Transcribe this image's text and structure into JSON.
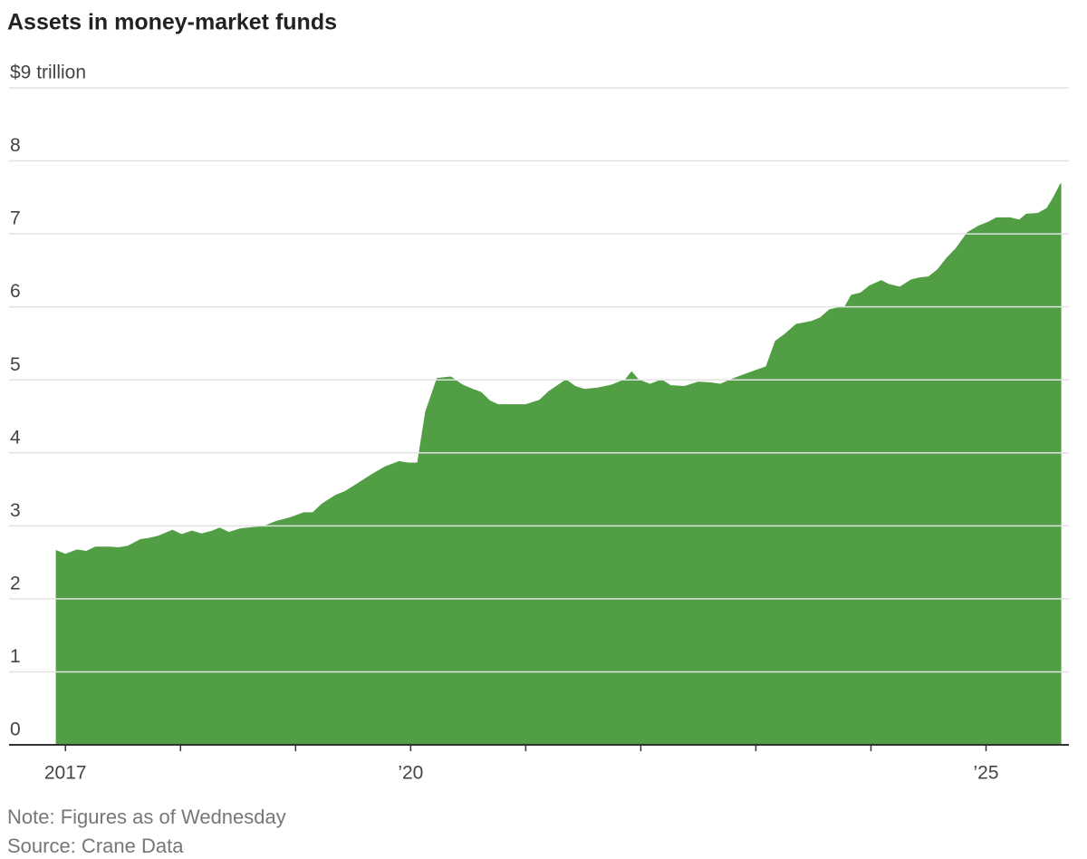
{
  "chart_data": {
    "type": "area",
    "title": "Assets in money-market funds",
    "notes": [
      "Note: Figures as of Wednesday",
      "Source: Crane Data"
    ],
    "color": "#529e44",
    "grid": true,
    "x": [
      2016.92,
      2017.0,
      2017.1,
      2017.18,
      2017.26,
      2017.38,
      2017.46,
      2017.54,
      2017.65,
      2017.73,
      2017.81,
      2017.93,
      2018.01,
      2018.1,
      2018.18,
      2018.26,
      2018.34,
      2018.42,
      2018.52,
      2018.64,
      2018.72,
      2018.83,
      2018.95,
      2019.07,
      2019.15,
      2019.23,
      2019.35,
      2019.43,
      2019.54,
      2019.66,
      2019.78,
      2019.9,
      2019.98,
      2020.06,
      2020.13,
      2020.23,
      2020.35,
      2020.45,
      2020.54,
      2020.61,
      2020.69,
      2020.76,
      2020.88,
      2021.0,
      2021.12,
      2021.2,
      2021.35,
      2021.43,
      2021.51,
      2021.63,
      2021.75,
      2021.87,
      2021.92,
      2021.98,
      2022.08,
      2022.18,
      2022.26,
      2022.38,
      2022.5,
      2022.61,
      2022.69,
      2022.81,
      2022.93,
      2023.09,
      2023.17,
      2023.24,
      2023.35,
      2023.48,
      2023.56,
      2023.64,
      2023.72,
      2023.77,
      2023.83,
      2023.91,
      2023.99,
      2024.09,
      2024.15,
      2024.25,
      2024.35,
      2024.43,
      2024.5,
      2024.58,
      2024.66,
      2024.74,
      2024.84,
      2024.94,
      2025.02,
      2025.09,
      2025.21,
      2025.29,
      2025.35,
      2025.45,
      2025.53,
      2025.58,
      2025.65
    ],
    "values": [
      2.66,
      2.61,
      2.67,
      2.65,
      2.71,
      2.71,
      2.7,
      2.72,
      2.81,
      2.83,
      2.86,
      2.94,
      2.88,
      2.93,
      2.89,
      2.92,
      2.97,
      2.91,
      2.96,
      2.98,
      2.99,
      3.06,
      3.11,
      3.18,
      3.18,
      3.3,
      3.42,
      3.47,
      3.58,
      3.7,
      3.81,
      3.88,
      3.86,
      3.86,
      4.56,
      5.02,
      5.04,
      4.93,
      4.87,
      4.83,
      4.71,
      4.66,
      4.66,
      4.66,
      4.72,
      4.84,
      5.0,
      4.91,
      4.87,
      4.89,
      4.93,
      5.01,
      5.11,
      5.0,
      4.94,
      5.0,
      4.92,
      4.91,
      4.97,
      4.96,
      4.94,
      5.02,
      5.09,
      5.18,
      5.53,
      5.61,
      5.76,
      5.8,
      5.85,
      5.96,
      5.99,
      5.99,
      6.16,
      6.19,
      6.29,
      6.36,
      6.31,
      6.27,
      6.37,
      6.4,
      6.41,
      6.51,
      6.67,
      6.8,
      7.02,
      7.11,
      7.16,
      7.22,
      7.22,
      7.19,
      7.27,
      7.28,
      7.35,
      7.48,
      7.69
    ],
    "xlim": [
      2016.51,
      2025.72
    ],
    "xticks": [
      {
        "value": 2017,
        "label": "2017"
      },
      {
        "value": 2020,
        "label": "’20"
      },
      {
        "value": 2025,
        "label": "’25"
      }
    ],
    "xticks_minor": [
      2018,
      2019,
      2021,
      2022,
      2023,
      2024
    ],
    "ylim": [
      0,
      9
    ],
    "yticks": [
      0,
      1,
      2,
      3,
      4,
      5,
      6,
      7,
      8,
      {
        "value": 9,
        "label": "$9 trillion"
      }
    ]
  }
}
